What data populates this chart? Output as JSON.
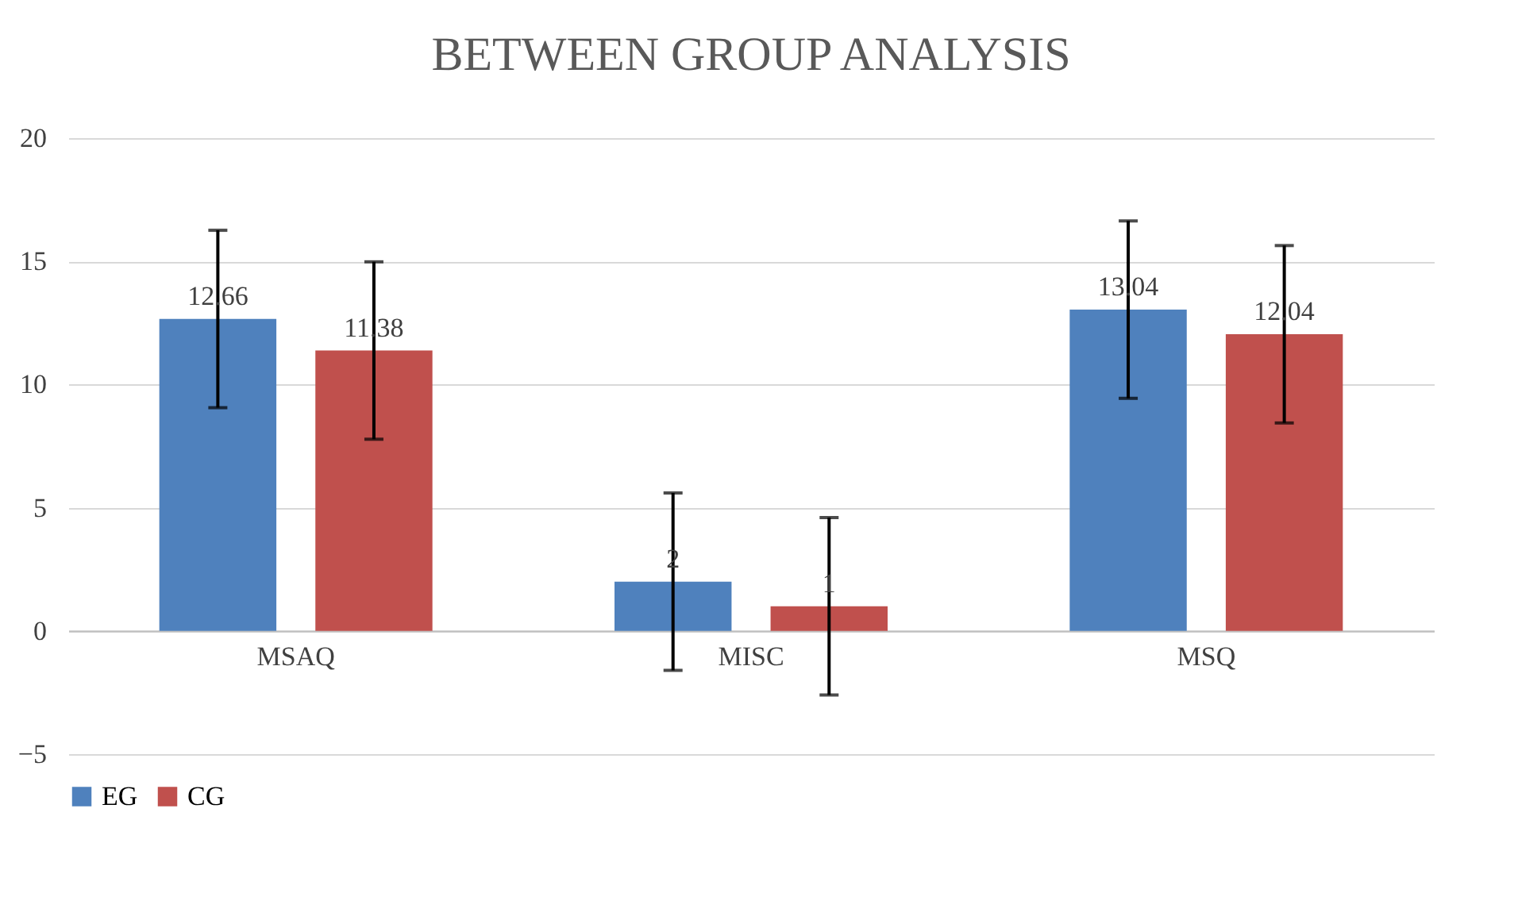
{
  "chart_data": {
    "type": "bar",
    "title": "BETWEEN GROUP ANALYSIS",
    "categories": [
      "MSAQ",
      "MISC",
      "MSQ"
    ],
    "series": [
      {
        "name": "EG",
        "color": "#4f81bd",
        "values": [
          12.66,
          2,
          13.04
        ],
        "errors": [
          3.6,
          3.6,
          3.6
        ]
      },
      {
        "name": "CG",
        "color": "#c0504d",
        "values": [
          11.38,
          1,
          12.04
        ],
        "errors": [
          3.6,
          3.6,
          3.6
        ]
      }
    ],
    "ylim": [
      -5,
      20
    ],
    "yticks": [
      -5,
      0,
      5,
      10,
      15,
      20
    ],
    "grid": "y",
    "legend": "bottom",
    "data_labels": true
  }
}
